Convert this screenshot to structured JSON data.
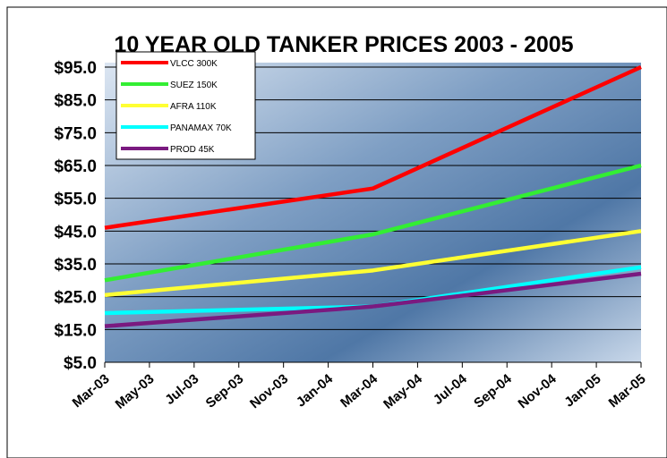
{
  "chart_data": {
    "type": "line",
    "title": "10 YEAR OLD TANKER PRICES 2003 - 2005",
    "x": [
      "Mar-03",
      "Mar-04",
      "Mar-05"
    ],
    "xticks": [
      "Mar-03",
      "May-03",
      "Jul-03",
      "Sep-03",
      "Nov-03",
      "Jan-04",
      "Mar-04",
      "May-04",
      "Jul-04",
      "Sep-04",
      "Nov-04",
      "Jan-05",
      "Mar-05"
    ],
    "series": [
      {
        "name": "VLCC 300K",
        "color": "#ff0000",
        "values": [
          46,
          58,
          95
        ]
      },
      {
        "name": "SUEZ 150K",
        "color": "#33ee33",
        "values": [
          30,
          44,
          65
        ]
      },
      {
        "name": "AFRA 110K",
        "color": "#ffff33",
        "values": [
          25.5,
          33,
          45
        ]
      },
      {
        "name": "PANAMAX 70K",
        "color": "#00ffff",
        "values": [
          20,
          22,
          34
        ]
      },
      {
        "name": "PROD 45K",
        "color": "#7a1a80",
        "values": [
          16,
          22,
          32
        ]
      }
    ],
    "ylim": [
      5,
      95
    ],
    "yticks": [
      {
        "value": 5,
        "label": "$5.0"
      },
      {
        "value": 15,
        "label": "$15.0"
      },
      {
        "value": 25,
        "label": "$25.0"
      },
      {
        "value": 35,
        "label": "$35.0"
      },
      {
        "value": 45,
        "label": "$45.0"
      },
      {
        "value": 55,
        "label": "$55.0"
      },
      {
        "value": 65,
        "label": "$65.0"
      },
      {
        "value": 75,
        "label": "$75.0"
      },
      {
        "value": 85,
        "label": "$85.0"
      },
      {
        "value": 95,
        "label": "$95.0"
      }
    ],
    "grid": true
  }
}
